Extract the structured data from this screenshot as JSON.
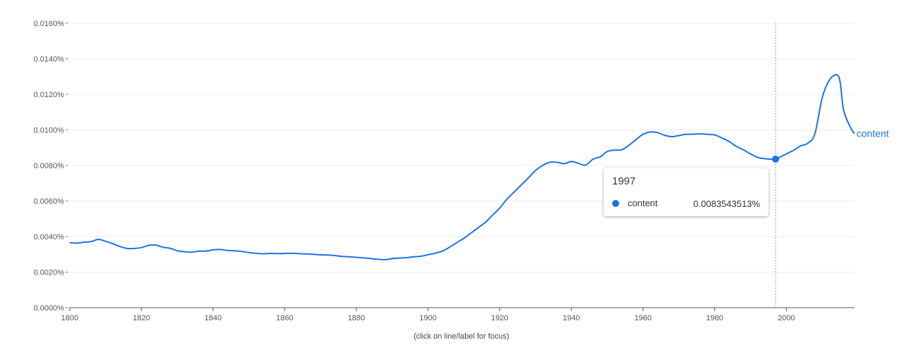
{
  "chart_data": {
    "type": "line",
    "title": "",
    "xlabel": "",
    "ylabel": "",
    "xlim": [
      1800,
      2019
    ],
    "ylim": [
      0,
      0.016
    ],
    "x_ticks": [
      "1800",
      "1820",
      "1840",
      "1860",
      "1880",
      "1900",
      "1920",
      "1940",
      "1960",
      "1980",
      "2000"
    ],
    "y_ticks": [
      "0.0000%",
      "0.0020%",
      "0.0040%",
      "0.0060%",
      "0.0080%",
      "0.0100%",
      "0.0120%",
      "0.0140%",
      "0.0160%"
    ],
    "grid": true,
    "series": [
      {
        "name": "content",
        "color": "#1a73e8",
        "points": [
          [
            1800,
            0.00365
          ],
          [
            1802,
            0.00363
          ],
          [
            1804,
            0.00368
          ],
          [
            1806,
            0.00372
          ],
          [
            1808,
            0.00384
          ],
          [
            1810,
            0.00373
          ],
          [
            1812,
            0.0036
          ],
          [
            1814,
            0.00344
          ],
          [
            1816,
            0.00333
          ],
          [
            1818,
            0.00333
          ],
          [
            1820,
            0.00338
          ],
          [
            1822,
            0.0035
          ],
          [
            1824,
            0.00352
          ],
          [
            1826,
            0.0034
          ],
          [
            1828,
            0.00334
          ],
          [
            1830,
            0.0032
          ],
          [
            1832,
            0.00315
          ],
          [
            1834,
            0.00312
          ],
          [
            1836,
            0.00318
          ],
          [
            1838,
            0.00318
          ],
          [
            1840,
            0.00325
          ],
          [
            1842,
            0.00327
          ],
          [
            1844,
            0.00322
          ],
          [
            1846,
            0.0032
          ],
          [
            1848,
            0.00316
          ],
          [
            1850,
            0.0031
          ],
          [
            1852,
            0.00306
          ],
          [
            1854,
            0.00303
          ],
          [
            1856,
            0.00305
          ],
          [
            1858,
            0.00304
          ],
          [
            1860,
            0.00305
          ],
          [
            1862,
            0.00306
          ],
          [
            1864,
            0.00304
          ],
          [
            1866,
            0.00302
          ],
          [
            1868,
            0.003
          ],
          [
            1870,
            0.00297
          ],
          [
            1872,
            0.00296
          ],
          [
            1874,
            0.00293
          ],
          [
            1876,
            0.00288
          ],
          [
            1878,
            0.00286
          ],
          [
            1880,
            0.00283
          ],
          [
            1882,
            0.0028
          ],
          [
            1884,
            0.00276
          ],
          [
            1886,
            0.00272
          ],
          [
            1888,
            0.0027
          ],
          [
            1890,
            0.00276
          ],
          [
            1892,
            0.00279
          ],
          [
            1894,
            0.00281
          ],
          [
            1896,
            0.00286
          ],
          [
            1898,
            0.00289
          ],
          [
            1900,
            0.00298
          ],
          [
            1902,
            0.00306
          ],
          [
            1904,
            0.00318
          ],
          [
            1906,
            0.0034
          ],
          [
            1908,
            0.00365
          ],
          [
            1910,
            0.0039
          ],
          [
            1912,
            0.0042
          ],
          [
            1914,
            0.0045
          ],
          [
            1916,
            0.0048
          ],
          [
            1918,
            0.0052
          ],
          [
            1920,
            0.0056
          ],
          [
            1922,
            0.0061
          ],
          [
            1924,
            0.0065
          ],
          [
            1926,
            0.0069
          ],
          [
            1928,
            0.0073
          ],
          [
            1930,
            0.00772
          ],
          [
            1932,
            0.008
          ],
          [
            1934,
            0.00818
          ],
          [
            1936,
            0.00818
          ],
          [
            1938,
            0.0081
          ],
          [
            1940,
            0.00822
          ],
          [
            1942,
            0.00812
          ],
          [
            1944,
            0.00802
          ],
          [
            1946,
            0.00835
          ],
          [
            1948,
            0.00848
          ],
          [
            1950,
            0.00878
          ],
          [
            1952,
            0.00886
          ],
          [
            1954,
            0.00888
          ],
          [
            1956,
            0.00912
          ],
          [
            1958,
            0.00945
          ],
          [
            1960,
            0.00975
          ],
          [
            1962,
            0.00988
          ],
          [
            1964,
            0.00985
          ],
          [
            1966,
            0.0097
          ],
          [
            1968,
            0.00962
          ],
          [
            1970,
            0.00968
          ],
          [
            1972,
            0.00975
          ],
          [
            1974,
            0.00976
          ],
          [
            1976,
            0.00978
          ],
          [
            1978,
            0.00975
          ],
          [
            1980,
            0.00972
          ],
          [
            1982,
            0.00955
          ],
          [
            1984,
            0.00935
          ],
          [
            1986,
            0.00908
          ],
          [
            1988,
            0.00888
          ],
          [
            1990,
            0.00865
          ],
          [
            1992,
            0.00845
          ],
          [
            1994,
            0.00838
          ],
          [
            1996,
            0.00835
          ],
          [
            1997,
            0.0083543513
          ],
          [
            1998,
            0.00845
          ],
          [
            2000,
            0.00865
          ],
          [
            2002,
            0.00885
          ],
          [
            2004,
            0.0091
          ],
          [
            2006,
            0.00925
          ],
          [
            2008,
            0.0098
          ],
          [
            2010,
            0.0118
          ],
          [
            2012,
            0.0128
          ],
          [
            2014,
            0.0131
          ],
          [
            2015,
            0.0127
          ],
          [
            2016,
            0.0111
          ],
          [
            2018,
            0.0101
          ],
          [
            2019,
            0.0098
          ]
        ]
      }
    ],
    "focus": {
      "year": "1997",
      "x": 1997,
      "y": 0.0083543513,
      "series": "content",
      "value_label": "0.0083543513%"
    },
    "hint": "(click on line/label for focus)"
  }
}
